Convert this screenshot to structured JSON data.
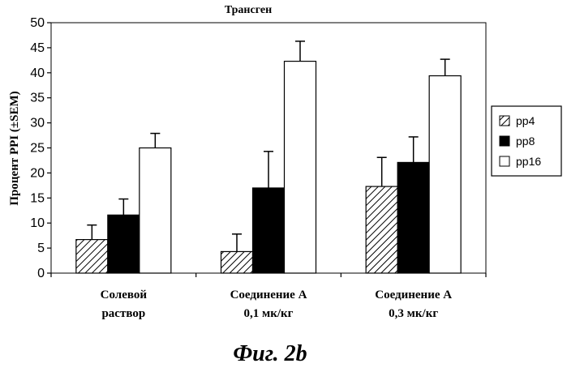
{
  "caption": "Фиг. 2b",
  "chart_data": {
    "type": "bar",
    "title": "Трансген",
    "ylabel": "Процент PPI (±SEM)",
    "xlabel": "",
    "ylim": [
      0,
      50
    ],
    "yticks": [
      0,
      5,
      10,
      15,
      20,
      25,
      30,
      35,
      40,
      45,
      50
    ],
    "grid": false,
    "legend_position": "right",
    "categories": [
      [
        "Солевой",
        "раствор"
      ],
      [
        "Соединение А",
        "0,1 мк/кг"
      ],
      [
        "Соединение А",
        "0,3 мк/кг"
      ]
    ],
    "series": [
      {
        "name": "pp4",
        "pattern": "hatch",
        "color": "#000000",
        "values": [
          6.7,
          4.3,
          17.3
        ],
        "errors": [
          2.9,
          3.5,
          5.8
        ]
      },
      {
        "name": "pp8",
        "pattern": "solid",
        "color": "#000000",
        "values": [
          11.6,
          17.0,
          22.1
        ],
        "errors": [
          3.2,
          7.3,
          5.1
        ]
      },
      {
        "name": "pp16",
        "pattern": "solid",
        "color": "#ffffff",
        "values": [
          25.0,
          42.3,
          39.4
        ],
        "errors": [
          2.9,
          4.0,
          3.3
        ]
      }
    ]
  }
}
